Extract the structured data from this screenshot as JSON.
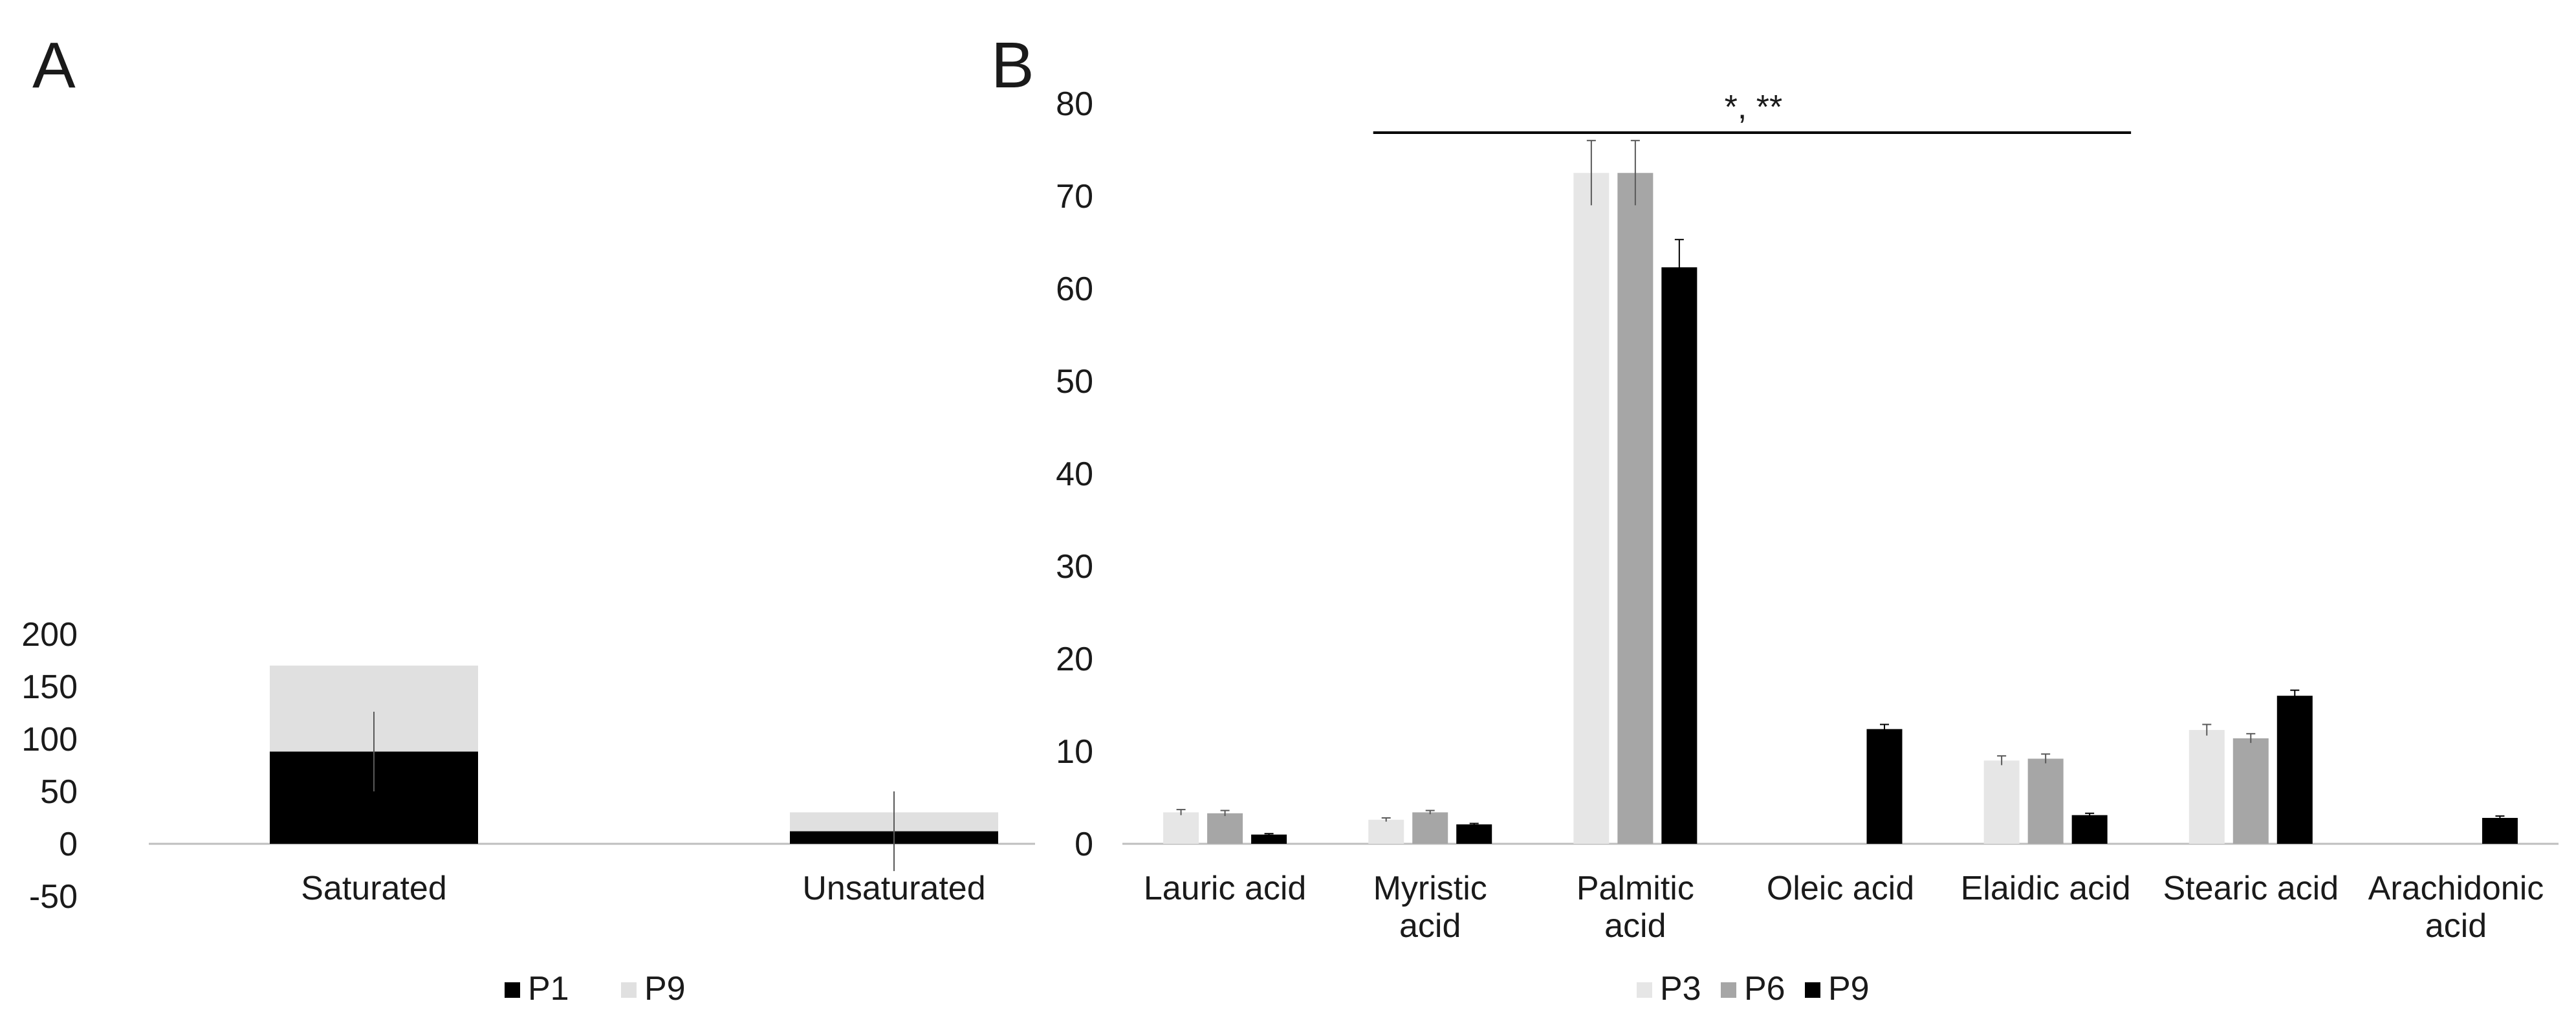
{
  "panel_a_label": "A",
  "panel_b_label": "B",
  "significance_label": "*, **",
  "colors": {
    "P1": "#000000",
    "P9_stack": "#e0e0e0",
    "P3": "#e6e6e6",
    "P6": "#a6a6a6",
    "P9": "#000000",
    "axis": "#bfbfbf",
    "error": "#595959"
  },
  "chart_data": [
    {
      "type": "bar",
      "stacked": true,
      "categories": [
        "Saturated",
        "Unsaturated"
      ],
      "series": [
        {
          "name": "P1",
          "values": [
            88,
            12
          ],
          "error": [
            38,
            38
          ]
        },
        {
          "name": "P9",
          "values": [
            82,
            18
          ]
        }
      ],
      "ylim": [
        -50,
        200
      ],
      "yticks": [
        "-50",
        "0",
        "50",
        "100",
        "150",
        "200"
      ],
      "ytick_values": [
        -50,
        0,
        50,
        100,
        150,
        200
      ],
      "legend": [
        "P1",
        "P9"
      ],
      "legend_position": "bottom",
      "grid": false
    },
    {
      "type": "bar",
      "categories": [
        "Lauric acid",
        "Myristic acid",
        "Palmitic acid",
        "Oleic acid",
        "Elaidic acid",
        "Stearic acid",
        "Arachidonic acid"
      ],
      "series": [
        {
          "name": "P3",
          "values": [
            3.4,
            2.6,
            72.5,
            0,
            9.0,
            12.3,
            0
          ],
          "error": [
            0.3,
            0.2,
            3.5,
            0,
            0.5,
            0.6,
            0
          ]
        },
        {
          "name": "P6",
          "values": [
            3.3,
            3.4,
            72.5,
            0,
            9.2,
            11.4,
            0
          ],
          "error": [
            0.3,
            0.2,
            3.5,
            0,
            0.5,
            0.5,
            0
          ]
        },
        {
          "name": "P9",
          "values": [
            1.0,
            2.1,
            62.3,
            12.4,
            3.1,
            16.0,
            2.8
          ],
          "error": [
            0.1,
            0.1,
            3.0,
            0.5,
            0.2,
            0.6,
            0.2
          ]
        }
      ],
      "ylim": [
        0,
        80
      ],
      "yticks": [
        "0",
        "10",
        "20",
        "30",
        "40",
        "50",
        "60",
        "70",
        "80"
      ],
      "ytick_values": [
        0,
        10,
        20,
        30,
        40,
        50,
        60,
        70,
        80
      ],
      "significance": {
        "label": "*, **",
        "from_category": "Myristic acid",
        "to_category": "Elaidic acid"
      },
      "legend": [
        "P3",
        "P6",
        "P9"
      ],
      "legend_position": "bottom",
      "grid": false
    }
  ]
}
